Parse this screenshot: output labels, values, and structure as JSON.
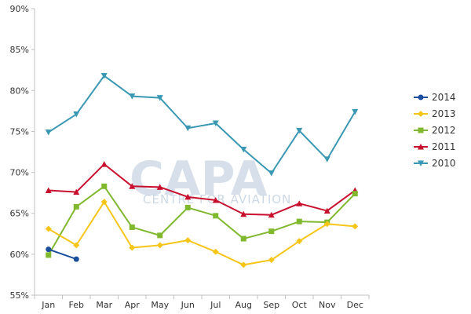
{
  "watermark": {
    "logo": "CAPA",
    "tagline": "CENTRE FOR AVIATION"
  },
  "chart_data": {
    "type": "line",
    "categories": [
      "Jan",
      "Feb",
      "Mar",
      "Apr",
      "May",
      "Jun",
      "Jul",
      "Aug",
      "Sep",
      "Oct",
      "Nov",
      "Dec"
    ],
    "ylim": [
      55,
      90
    ],
    "yticks": [
      55,
      60,
      65,
      70,
      75,
      80,
      85,
      90
    ],
    "ytick_labels": [
      "55%",
      "60%",
      "65%",
      "70%",
      "75%",
      "80%",
      "85%",
      "90%"
    ],
    "grid": false,
    "legend_position": "right",
    "series": [
      {
        "name": "2014",
        "color": "#1a4f9c",
        "marker": "circle",
        "values": [
          60.6,
          59.4,
          null,
          null,
          null,
          null,
          null,
          null,
          null,
          null,
          null,
          null
        ]
      },
      {
        "name": "2013",
        "color": "#f5c518",
        "marker": "diamond",
        "values": [
          63.1,
          61.1,
          66.4,
          60.8,
          61.1,
          61.7,
          60.3,
          58.7,
          59.3,
          61.6,
          63.7,
          63.4
        ]
      },
      {
        "name": "2012",
        "color": "#80b82e",
        "marker": "square",
        "values": [
          59.9,
          65.8,
          68.3,
          63.3,
          62.3,
          65.7,
          64.7,
          61.9,
          62.8,
          64.0,
          63.9,
          67.4
        ]
      },
      {
        "name": "2011",
        "color": "#c8102e",
        "marker": "triangle-up",
        "values": [
          67.8,
          67.6,
          71.0,
          68.3,
          68.2,
          67.0,
          66.6,
          64.9,
          64.8,
          66.2,
          65.3,
          67.8
        ]
      },
      {
        "name": "2010",
        "color": "#3a98b3",
        "marker": "triangle-down",
        "values": [
          74.9,
          77.1,
          81.8,
          79.3,
          79.1,
          75.4,
          76.0,
          72.8,
          69.9,
          75.1,
          71.6,
          77.4
        ]
      }
    ]
  }
}
